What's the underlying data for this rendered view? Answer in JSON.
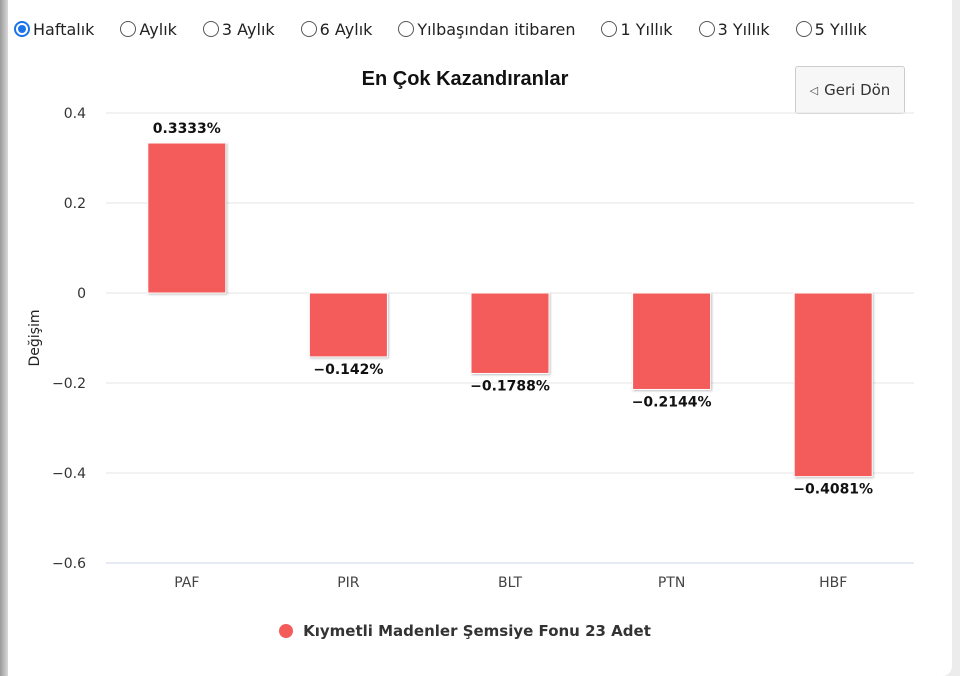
{
  "periods": [
    {
      "label": "Haftalık",
      "checked": true
    },
    {
      "label": "Aylık",
      "checked": false
    },
    {
      "label": "3 Aylık",
      "checked": false
    },
    {
      "label": "6 Aylık",
      "checked": false
    },
    {
      "label": "Yılbaşından itibaren",
      "checked": false
    },
    {
      "label": "1 Yıllık",
      "checked": false
    },
    {
      "label": "3 Yıllık",
      "checked": false
    },
    {
      "label": "5 Yıllık",
      "checked": false
    }
  ],
  "back_button": {
    "label": "Geri Dön",
    "icon": "triangle-left-icon"
  },
  "colors": {
    "bar": "#f45b5b",
    "radio_checked": "#1a73e8"
  },
  "chart_data": {
    "type": "bar",
    "title": "En Çok Kazandıranlar",
    "xlabel": "",
    "ylabel": "Değişim",
    "categories": [
      "PAF",
      "PIR",
      "BLT",
      "PTN",
      "HBF"
    ],
    "series": [
      {
        "name": "Kıymetli Madenler Şemsiye Fonu 23 Adet",
        "values": [
          0.3333,
          -0.142,
          -0.1788,
          -0.2144,
          -0.4081
        ],
        "data_labels": [
          "0.3333%",
          "−0.142%",
          "−0.1788%",
          "−0.2144%",
          "−0.4081%"
        ]
      }
    ],
    "ylim": [
      -0.6,
      0.4
    ],
    "y_ticks": [
      "0.4",
      "0.2",
      "0",
      "−0.2",
      "−0.4",
      "−0.6"
    ],
    "grid": true,
    "legend_position": "bottom-center"
  }
}
